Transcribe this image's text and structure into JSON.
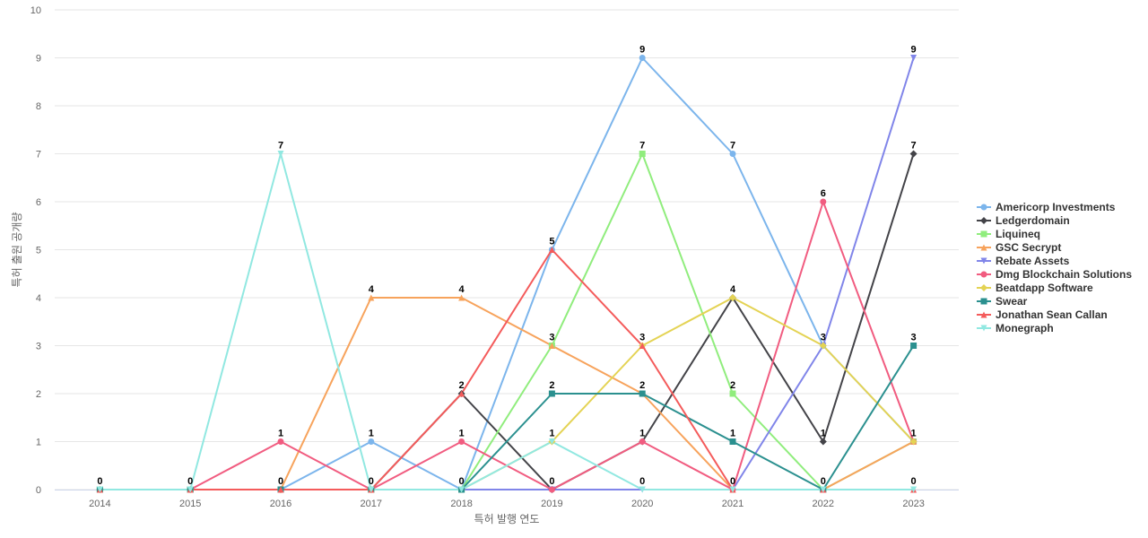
{
  "chart_data": {
    "type": "line",
    "title": "",
    "xlabel": "특허 발행 연도",
    "ylabel": "특허 출원 공개량",
    "ylim": [
      0,
      10
    ],
    "yticks": [
      0,
      1,
      2,
      3,
      4,
      5,
      6,
      7,
      8,
      9,
      10
    ],
    "x": [
      "2014",
      "2015",
      "2016",
      "2017",
      "2018",
      "2019",
      "2020",
      "2021",
      "2022",
      "2023"
    ],
    "grid": "horizontal",
    "legend_position": "right",
    "series": [
      {
        "name": "Americorp Investments",
        "color": "#7cb5ec",
        "marker": "circle",
        "values": [
          0,
          0,
          0,
          1,
          0,
          5,
          9,
          7,
          3,
          1
        ]
      },
      {
        "name": "Ledgerdomain",
        "color": "#434348",
        "marker": "diamond",
        "values": [
          0,
          0,
          0,
          0,
          2,
          0,
          1,
          4,
          1,
          7
        ]
      },
      {
        "name": "Liquineq",
        "color": "#90ed7d",
        "marker": "square",
        "values": [
          0,
          0,
          0,
          0,
          0,
          3,
          7,
          2,
          0,
          1
        ]
      },
      {
        "name": "GSC Secrypt",
        "color": "#f7a35c",
        "marker": "triangle",
        "values": [
          0,
          0,
          0,
          4,
          4,
          3,
          2,
          0,
          0,
          1
        ]
      },
      {
        "name": "Rebate Assets",
        "color": "#8085e9",
        "marker": "triangle-down",
        "values": [
          0,
          0,
          0,
          0,
          0,
          0,
          0,
          0,
          3,
          9
        ]
      },
      {
        "name": "Dmg Blockchain Solutions",
        "color": "#f15c80",
        "marker": "circle",
        "values": [
          0,
          0,
          1,
          0,
          1,
          0,
          1,
          0,
          6,
          1
        ]
      },
      {
        "name": "Beatdapp Software",
        "color": "#e4d354",
        "marker": "diamond",
        "values": [
          0,
          0,
          0,
          0,
          0,
          1,
          3,
          4,
          3,
          1
        ]
      },
      {
        "name": "Swear",
        "color": "#2b908f",
        "marker": "square",
        "values": [
          0,
          0,
          0,
          0,
          0,
          2,
          2,
          1,
          0,
          3
        ]
      },
      {
        "name": "Jonathan Sean Callan",
        "color": "#f45b5b",
        "marker": "triangle",
        "values": [
          0,
          0,
          0,
          0,
          2,
          5,
          3,
          0,
          0,
          0
        ]
      },
      {
        "name": "Monegraph",
        "color": "#91e8e1",
        "marker": "triangle-down",
        "values": [
          0,
          0,
          7,
          0,
          0,
          1,
          0,
          0,
          0,
          0
        ]
      }
    ],
    "top_labels": [
      {
        "x": "2014",
        "text": "0"
      },
      {
        "x": "2015",
        "text": "0"
      },
      {
        "x": "2016",
        "text": "7"
      },
      {
        "x": "2017",
        "text": "4"
      },
      {
        "x": "2018",
        "text": "4"
      },
      {
        "x": "2019",
        "text": "5"
      },
      {
        "x": "2020",
        "text": "9"
      },
      {
        "x": "2021",
        "text": "7"
      },
      {
        "x": "2022",
        "text": "6"
      },
      {
        "x": "2023",
        "text": "9"
      }
    ]
  }
}
